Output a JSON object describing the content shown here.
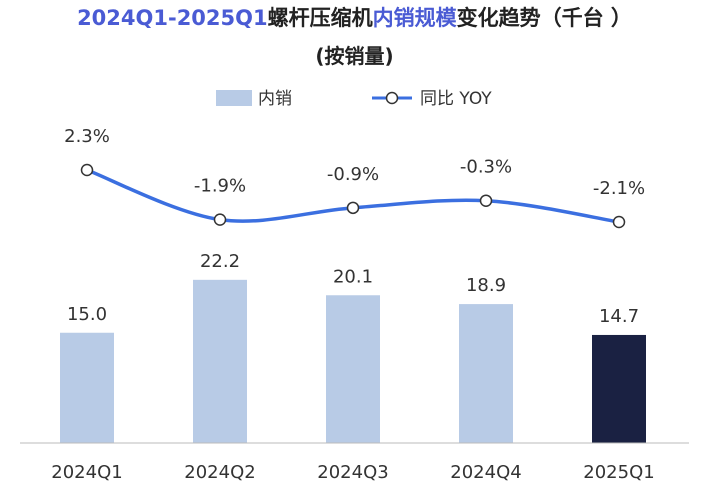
{
  "title": {
    "part1": "2024Q1-2025Q1",
    "part2": "螺杆压缩机",
    "part3": "内销规模",
    "part4": "变化趋势（千台 ）",
    "subtitle": "(按销量)"
  },
  "colors": {
    "bar": "#b8cbe6",
    "bar_highlight": "#1a2142",
    "line": "#3b6fe0",
    "title_accent": "#4a5bd4"
  },
  "chart_data": {
    "type": "bar",
    "title": "2024Q1-2025Q1螺杆压缩机内销规模变化趋势（千台 ）(按销量)",
    "categories": [
      "2024Q1",
      "2024Q2",
      "2024Q3",
      "2024Q4",
      "2025Q1"
    ],
    "series": [
      {
        "name": "内销",
        "type": "bar",
        "values": [
          15.0,
          22.2,
          20.1,
          18.9,
          14.7
        ],
        "labels": [
          "15.0",
          "22.2",
          "20.1",
          "18.9",
          "14.7"
        ]
      },
      {
        "name": "同比 YOY",
        "type": "line",
        "values": [
          2.3,
          -1.9,
          -0.9,
          -0.3,
          -2.1
        ],
        "labels": [
          "2.3%",
          "-1.9%",
          "-0.9%",
          "-0.3%",
          "-2.1%"
        ]
      }
    ],
    "highlight_index": 4,
    "bar_ylim": [
      0,
      60
    ],
    "line_ylim": [
      -5,
      5
    ],
    "legend": {
      "position": "top-center",
      "items": [
        "内销",
        "同比 YOY"
      ]
    },
    "grid": false
  }
}
